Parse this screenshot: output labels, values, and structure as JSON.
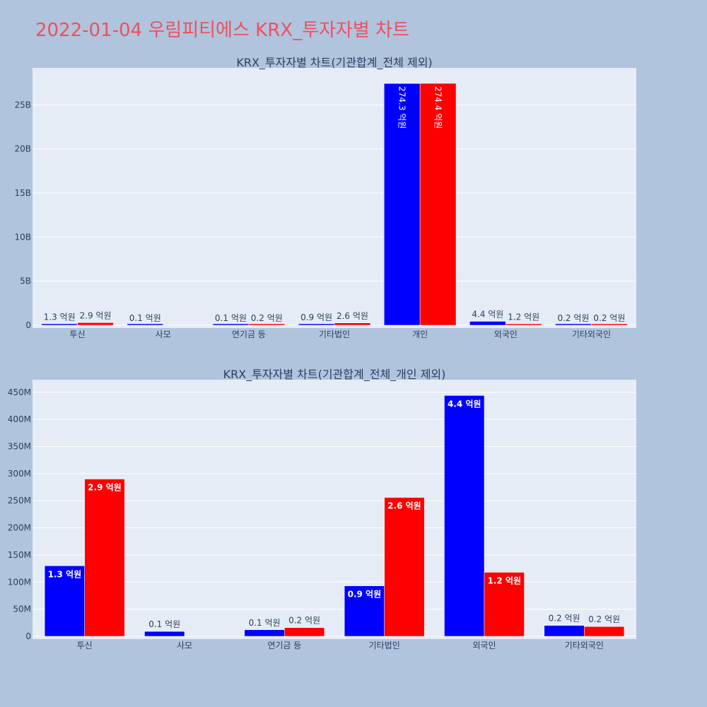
{
  "page": {
    "title": "2022-01-04 우림피티에스 KRX_투자자별 차트"
  },
  "colors": {
    "background": "#B0C4DE",
    "plot_background": "#E5ECF6",
    "title": "#EF4F5F",
    "series_blue": "#0000FF",
    "series_red": "#FF0000",
    "text": "#2a3f5f"
  },
  "chart_data": [
    {
      "type": "bar",
      "title": "KRX_투자자별 차트(기관합계_전체 제외)",
      "categories": [
        "투신",
        "사모",
        "연기금 등",
        "기타법인",
        "개인",
        "외국인",
        "기타외국인"
      ],
      "series": [
        {
          "color": "#0000FF",
          "values": [
            130000000,
            10000000,
            10000000,
            90000000,
            27430000000,
            440000000,
            20000000
          ],
          "labels": [
            "1.3 억원",
            "0.1 억원",
            "0.1 억원",
            "0.9 억원",
            "274.3 억원",
            "4.4 억원",
            "0.2 억원"
          ]
        },
        {
          "color": "#FF0000",
          "values": [
            290000000,
            null,
            20000000,
            260000000,
            27440000000,
            120000000,
            20000000
          ],
          "labels": [
            "2.9 억원",
            "",
            "0.2 억원",
            "2.6 억원",
            "274.4 억원",
            "1.2 억원",
            "0.2 억원"
          ]
        }
      ],
      "yticks": [
        0,
        5000000000,
        10000000000,
        15000000000,
        20000000000,
        25000000000
      ],
      "ytick_labels": [
        "0",
        "5B",
        "10B",
        "15B",
        "20B",
        "25B"
      ],
      "ylim": [
        0,
        28880000000
      ],
      "grid": true
    },
    {
      "type": "bar",
      "title": "KRX_투자자별 차트(기관합계_전체_개인 제외)",
      "categories": [
        "투신",
        "사모",
        "연기금 등",
        "기타법인",
        "외국인",
        "기타외국인"
      ],
      "series": [
        {
          "color": "#0000FF",
          "values": [
            130000000,
            9000000,
            12000000,
            93000000,
            444000000,
            20000000
          ],
          "labels": [
            "1.3 억원",
            "0.1 억원",
            "0.1 억원",
            "0.9 억원",
            "4.4 억원",
            "0.2 억원"
          ]
        },
        {
          "color": "#FF0000",
          "values": [
            290000000,
            null,
            16000000,
            256000000,
            118000000,
            18000000
          ],
          "labels": [
            "2.9 억원",
            "",
            "0.2 억원",
            "2.6 억원",
            "1.2 억원",
            "0.2 억원"
          ]
        }
      ],
      "yticks": [
        0,
        50000000,
        100000000,
        150000000,
        200000000,
        250000000,
        300000000,
        350000000,
        400000000,
        450000000
      ],
      "ytick_labels": [
        "0",
        "50M",
        "100M",
        "150M",
        "200M",
        "250M",
        "300M",
        "350M",
        "400M",
        "450M"
      ],
      "ylim": [
        0,
        468000000
      ],
      "grid": true
    }
  ]
}
